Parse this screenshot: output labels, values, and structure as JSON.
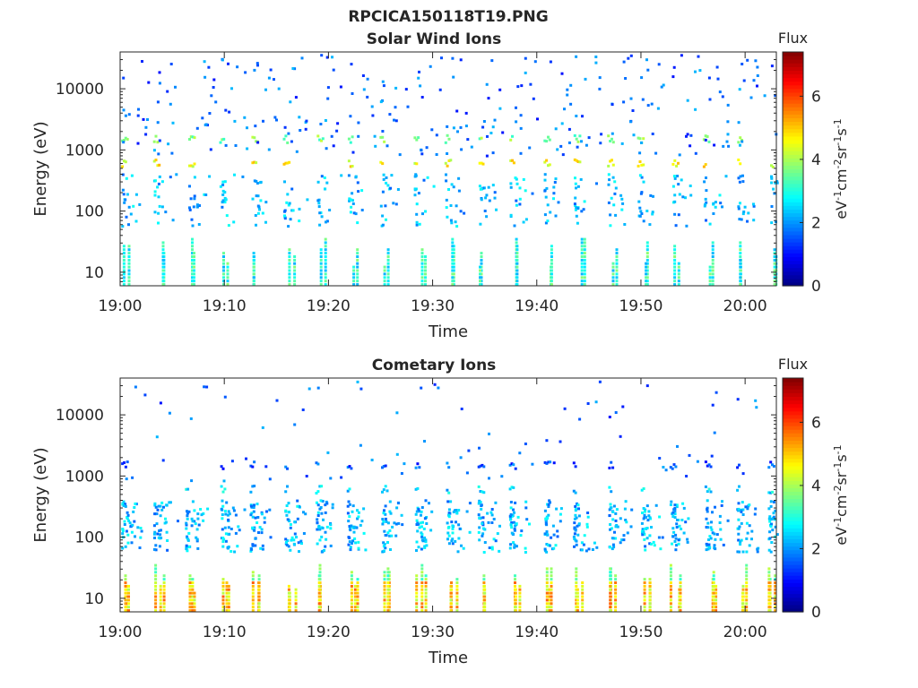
{
  "figure_title": "RPCICA150118T19.PNG",
  "chart_data": [
    {
      "type": "heatmap",
      "title": "Solar Wind Ions",
      "xlabel": "Time",
      "ylabel": "Energy (eV)",
      "x_ticks": [
        "19:00",
        "19:10",
        "19:20",
        "19:30",
        "19:40",
        "19:50",
        "20:00"
      ],
      "x_tick_minutes": [
        0,
        10,
        20,
        30,
        40,
        50,
        60
      ],
      "xlim_minutes": [
        0,
        63
      ],
      "y_scale": "log",
      "ylim": [
        6,
        40000
      ],
      "y_ticks": [
        10,
        100,
        1000,
        10000
      ],
      "y_tick_labels": [
        "10",
        "100",
        "1000",
        "10000"
      ],
      "colorbar": {
        "title": "Flux",
        "label": "eV-1cm-2sr-1s-1",
        "min": 0,
        "max": 7.4,
        "ticks": [
          0,
          2,
          4,
          6
        ],
        "tick_labels": [
          "0",
          "2",
          "4",
          "6"
        ]
      },
      "scan_period_min": 3.1,
      "bands": [
        {
          "energy": 600,
          "flux": 4.6
        },
        {
          "energy": 1500,
          "flux": 3.7
        }
      ],
      "seed": 11
    },
    {
      "type": "heatmap",
      "title": "Cometary Ions",
      "xlabel": "Time",
      "ylabel": "Energy (eV)",
      "x_ticks": [
        "19:00",
        "19:10",
        "19:20",
        "19:30",
        "19:40",
        "19:50",
        "20:00"
      ],
      "x_tick_minutes": [
        0,
        10,
        20,
        30,
        40,
        50,
        60
      ],
      "xlim_minutes": [
        0,
        63
      ],
      "y_scale": "log",
      "ylim": [
        6,
        40000
      ],
      "y_ticks": [
        10,
        100,
        1000,
        10000
      ],
      "y_tick_labels": [
        "10",
        "100",
        "1000",
        "10000"
      ],
      "colorbar": {
        "title": "Flux",
        "label": "eV-1cm-2sr-1s-1",
        "min": 0,
        "max": 7.4,
        "ticks": [
          0,
          2,
          4,
          6
        ],
        "tick_labels": [
          "0",
          "2",
          "4",
          "6"
        ]
      },
      "scan_period_min": 3.1,
      "bands": [
        {
          "energy": 600,
          "flux": 2.5
        },
        {
          "energy": 1500,
          "flux": 1.5
        }
      ],
      "low_energy_peak_flux": 5.8,
      "seed": 29
    }
  ]
}
